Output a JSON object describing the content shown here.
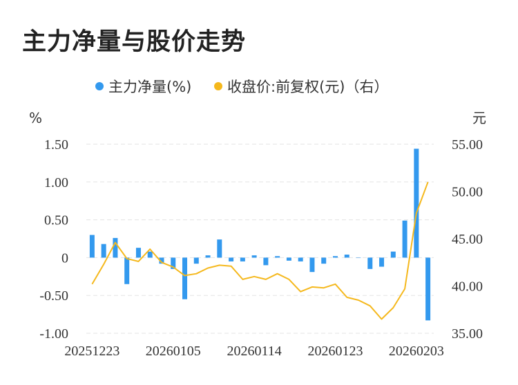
{
  "title": "主力净量与股价走势",
  "chart_data": {
    "type": "bar+line",
    "legend": {
      "placement": "top-center",
      "items": [
        {
          "label": "主力净量(%)",
          "color": "#3399ee",
          "marker": "dot"
        },
        {
          "label": "收盘价:前复权(元)（右）",
          "color": "#f5b81c",
          "marker": "dot"
        }
      ]
    },
    "left_axis": {
      "unit": "%",
      "ylim": [
        -1.0,
        1.5
      ],
      "ticks": [
        1.5,
        1.0,
        0.5,
        0,
        -0.5,
        -1.0
      ],
      "tick_labels": [
        "1.50",
        "1.00",
        "0.50",
        "0",
        "-0.50",
        "-1.00"
      ]
    },
    "right_axis": {
      "unit": "元",
      "ylim": [
        35,
        55
      ],
      "ticks": [
        55,
        50,
        45,
        40,
        35
      ],
      "tick_labels": [
        "55.00",
        "50.00",
        "45.00",
        "40.00",
        "35.00"
      ]
    },
    "x_tick_labels": [
      {
        "label": "20251223",
        "index": 0
      },
      {
        "label": "20260105",
        "index": 7
      },
      {
        "label": "20260114",
        "index": 14
      },
      {
        "label": "20260123",
        "index": 21
      },
      {
        "label": "20260203",
        "index": 28
      }
    ],
    "grid": "horizontal-dashed",
    "series": [
      {
        "name": "主力净量(%)",
        "type": "bar",
        "axis": "left",
        "color": "#3399ee",
        "values": [
          0.3,
          0.18,
          0.26,
          -0.35,
          0.13,
          0.08,
          -0.08,
          -0.15,
          -0.55,
          -0.08,
          0.03,
          0.24,
          -0.05,
          -0.05,
          0.03,
          -0.1,
          0.02,
          -0.04,
          -0.05,
          -0.19,
          -0.08,
          0.02,
          0.04,
          0.0,
          -0.15,
          -0.12,
          0.08,
          0.49,
          1.44,
          -0.83
        ]
      },
      {
        "name": "收盘价:前复权(元)（右）",
        "type": "line",
        "axis": "right",
        "color": "#f5b81c",
        "values": [
          40.2,
          42.3,
          44.6,
          42.9,
          42.6,
          43.9,
          42.5,
          42.0,
          41.1,
          41.3,
          41.9,
          42.2,
          42.1,
          40.7,
          41.0,
          40.7,
          41.3,
          40.7,
          39.4,
          39.9,
          39.8,
          40.2,
          38.8,
          38.5,
          37.9,
          36.5,
          37.7,
          39.7,
          47.7,
          51.0
        ]
      }
    ]
  }
}
